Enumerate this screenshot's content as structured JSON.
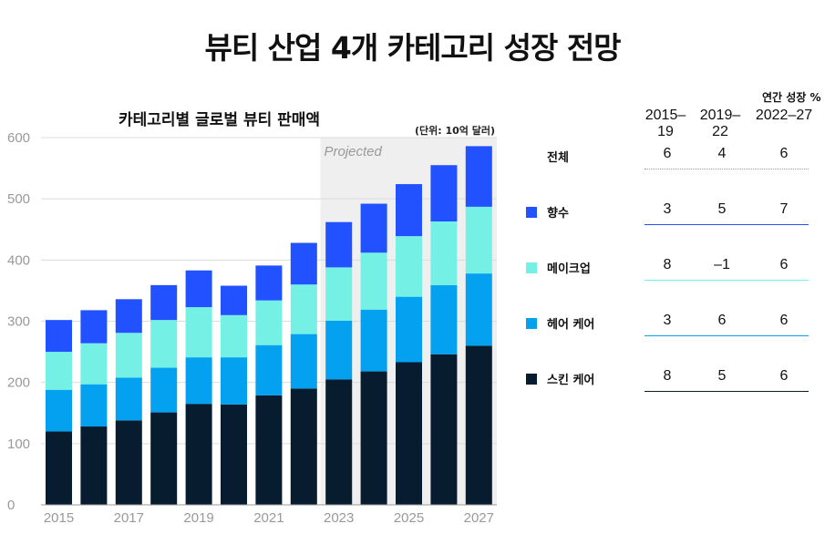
{
  "title": "뷰티 산업 4개 카테고리 성장 전망",
  "chart_data": {
    "type": "bar",
    "stacked": true,
    "title": "카테고리별 글로벌 뷰티 판매액",
    "unit_note": "(단위: 10억 달러)",
    "projected_label": "Projected",
    "projected_from": "2023",
    "ylim": [
      0,
      600
    ],
    "yticks": [
      0,
      100,
      200,
      300,
      400,
      500,
      600
    ],
    "categories": [
      "2015",
      "2016",
      "2017",
      "2018",
      "2019",
      "2020",
      "2021",
      "2022",
      "2023",
      "2024",
      "2025",
      "2026",
      "2027"
    ],
    "xtick_labels": [
      "2015",
      "2017",
      "2019",
      "2021",
      "2023",
      "2025",
      "2027"
    ],
    "series": [
      {
        "name": "스킨 케어",
        "color": "#071c2e",
        "values": [
          120,
          128,
          138,
          151,
          165,
          164,
          179,
          190,
          205,
          218,
          233,
          246,
          260
        ]
      },
      {
        "name": "헤어 케어",
        "color": "#03a1f0",
        "values": [
          68,
          69,
          70,
          73,
          76,
          77,
          82,
          89,
          96,
          101,
          107,
          113,
          118
        ]
      },
      {
        "name": "메이크업",
        "color": "#75f0e5",
        "values": [
          62,
          67,
          73,
          78,
          82,
          69,
          73,
          81,
          87,
          93,
          99,
          104,
          109
        ]
      },
      {
        "name": "향수",
        "color": "#2251ff",
        "values": [
          52,
          54,
          55,
          57,
          60,
          48,
          57,
          68,
          74,
          80,
          85,
          92,
          99
        ]
      }
    ],
    "legend": "right-table"
  },
  "table": {
    "header": "연간 성장 %",
    "periods": [
      {
        "line1": "2015–",
        "line2": "19"
      },
      {
        "line1": "2019–",
        "line2": "22"
      },
      {
        "line1": "2022–27",
        "line2": ""
      }
    ],
    "rows": [
      {
        "label": "전체",
        "color": "",
        "values": [
          "6",
          "4",
          "6"
        ],
        "rule_color": "#999999",
        "rule_style": "dotted"
      },
      {
        "label": "향수",
        "color": "#2251ff",
        "values": [
          "3",
          "5",
          "7"
        ],
        "rule_color": "#2251ff",
        "rule_style": "solid"
      },
      {
        "label": "메이크업",
        "color": "#75f0e5",
        "values": [
          "8",
          "–1",
          "6"
        ],
        "rule_color": "#75f0e5",
        "rule_style": "solid"
      },
      {
        "label": "헤어 케어",
        "color": "#03a1f0",
        "values": [
          "3",
          "6",
          "6"
        ],
        "rule_color": "#03a1f0",
        "rule_style": "solid"
      },
      {
        "label": "스킨 케어",
        "color": "#071c2e",
        "values": [
          "8",
          "5",
          "6"
        ],
        "rule_color": "#071c2e",
        "rule_style": "solid"
      }
    ]
  }
}
